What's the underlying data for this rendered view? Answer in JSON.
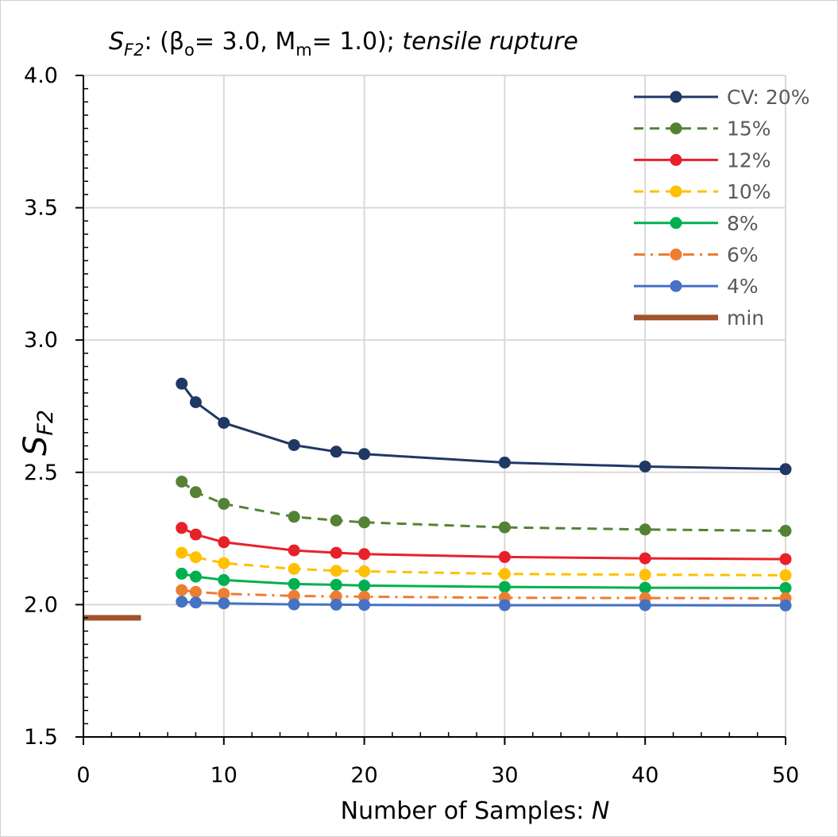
{
  "chart_data": {
    "type": "line",
    "title": {
      "s": "S",
      "s_sub": "F2",
      "p1": ": (β",
      "beta_sub": "o",
      "p2": "= 3.0, M",
      "m_sub": "m",
      "p3": "= 1.0);  ",
      "italic": "tensile rupture"
    },
    "xlabel": {
      "text": "Number of Samples: ",
      "italic": "N"
    },
    "ylabel": {
      "main": "S",
      "sub": "F2"
    },
    "xlim": [
      0,
      50
    ],
    "ylim": [
      1.5,
      4.0
    ],
    "xticks": [
      0,
      10,
      20,
      30,
      40,
      50
    ],
    "xtick_labels": [
      "0",
      "10",
      "20",
      "30",
      "40",
      "50"
    ],
    "yticks": [
      1.5,
      2.0,
      2.5,
      3.0,
      3.5,
      4.0
    ],
    "ytick_labels": [
      "1.5",
      "2.0",
      "2.5",
      "3.0",
      "3.5",
      "4.0"
    ],
    "grid": true,
    "legend_position": "top-right",
    "x": [
      7,
      8,
      10,
      15,
      18,
      20,
      30,
      40,
      50
    ],
    "series": [
      {
        "name": "CV: 20%",
        "color": "#1f3864",
        "dash": "solid",
        "values": [
          2.835,
          2.765,
          2.687,
          2.603,
          2.578,
          2.569,
          2.537,
          2.522,
          2.512
        ]
      },
      {
        "name": "15%",
        "color": "#548235",
        "dash": "dashed",
        "values": [
          2.465,
          2.425,
          2.381,
          2.332,
          2.318,
          2.311,
          2.292,
          2.284,
          2.279
        ]
      },
      {
        "name": "12%",
        "color": "#e8202a",
        "dash": "solid",
        "values": [
          2.29,
          2.265,
          2.236,
          2.205,
          2.196,
          2.191,
          2.18,
          2.175,
          2.172
        ]
      },
      {
        "name": "10%",
        "color": "#ffc000",
        "dash": "dashed",
        "values": [
          2.196,
          2.179,
          2.157,
          2.135,
          2.128,
          2.126,
          2.116,
          2.113,
          2.111
        ]
      },
      {
        "name": "8%",
        "color": "#00b050",
        "dash": "solid",
        "values": [
          2.117,
          2.106,
          2.093,
          2.078,
          2.075,
          2.072,
          2.067,
          2.064,
          2.063
        ]
      },
      {
        "name": "6%",
        "color": "#ed7d31",
        "dash": "dashdot",
        "values": [
          2.055,
          2.048,
          2.041,
          2.033,
          2.031,
          2.03,
          2.026,
          2.025,
          2.024
        ]
      },
      {
        "name": "4%",
        "color": "#4472c4",
        "dash": "solid",
        "values": [
          2.011,
          2.008,
          2.005,
          2.001,
          2.0,
          1.999,
          1.998,
          1.998,
          1.997
        ]
      }
    ],
    "min_line": {
      "name": "min",
      "color": "#a0522d",
      "x": [
        0,
        4.1
      ],
      "y": [
        1.95,
        1.95
      ]
    }
  }
}
